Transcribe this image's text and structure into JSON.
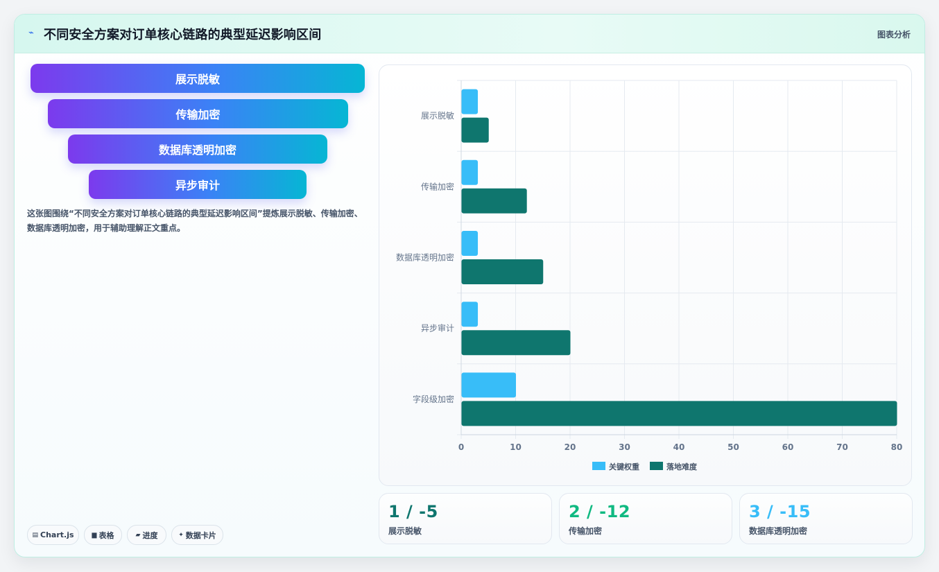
{
  "header": {
    "title": "不同安全方案对订单核心链路的典型延迟影响区间",
    "tag": "图表分析"
  },
  "funnel": [
    {
      "label": "展示脱敏"
    },
    {
      "label": "传输加密"
    },
    {
      "label": "数据库透明加密"
    },
    {
      "label": "异步审计"
    }
  ],
  "description": "这张图围绕“不同安全方案对订单核心链路的典型延迟影响区间”提炼展示脱敏、传输加密、数据库透明加密，用于辅助理解正文重点。",
  "chips": [
    {
      "icon": "▤",
      "icon_name": "chart-icon",
      "label": "Chart.js"
    },
    {
      "icon": "▆",
      "icon_name": "table-icon",
      "label": "表格"
    },
    {
      "icon": "▰",
      "icon_name": "progress-icon",
      "label": "进度"
    },
    {
      "icon": "✦",
      "icon_name": "sparkle-icon",
      "label": "数据卡片"
    }
  ],
  "stats": [
    {
      "value": "1 / -5",
      "label": "展示脱敏",
      "color": "#0f766e"
    },
    {
      "value": "2 / -12",
      "label": "传输加密",
      "color": "#10b981"
    },
    {
      "value": "3 / -15",
      "label": "数据库透明加密",
      "color": "#38bdf8"
    }
  ],
  "chart_data": {
    "type": "bar",
    "orientation": "horizontal",
    "categories": [
      "展示脱敏",
      "传输加密",
      "数据库透明加密",
      "异步审计",
      "字段级加密"
    ],
    "series": [
      {
        "name": "关键权重",
        "color": "#38bdf8",
        "values": [
          3,
          3,
          3,
          3,
          10
        ]
      },
      {
        "name": "落地难度",
        "color": "#0f766e",
        "values": [
          5,
          12,
          15,
          20,
          80
        ]
      }
    ],
    "xlim": [
      0,
      80
    ],
    "xticks": [
      0,
      10,
      20,
      30,
      40,
      50,
      60,
      70,
      80
    ],
    "grid": true,
    "legend": "bottom"
  }
}
